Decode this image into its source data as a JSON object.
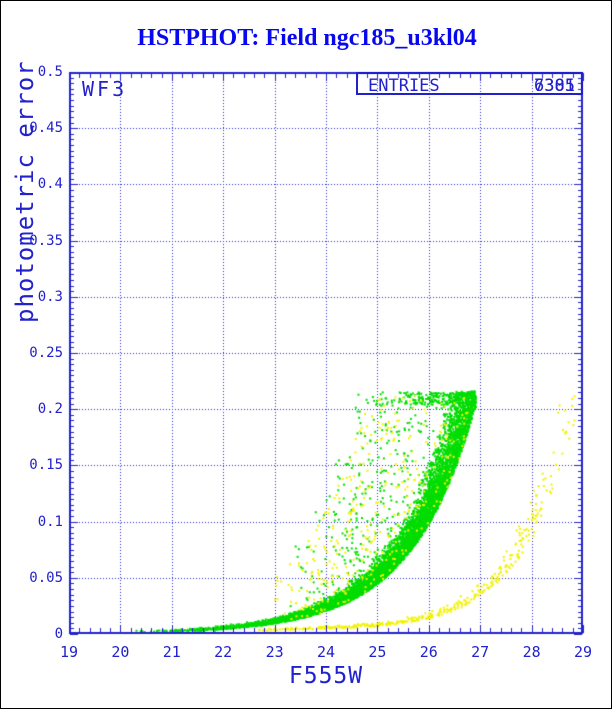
{
  "title": "HSTPHOT: Field ngc185_u3kl04",
  "colors": {
    "title": "#0707f0",
    "axis": "#2222cd",
    "grid": "#2a2ad2",
    "series_green": "#00dd00",
    "series_yellow": "#f2f200",
    "background": "#ffffff"
  },
  "plot": {
    "camera_label": "WF3",
    "entries_box": {
      "label": "ENTRIES",
      "values": [
        "7385",
        "6301"
      ]
    }
  },
  "chart_data": {
    "type": "scatter",
    "title": "HSTPHOT: Field ngc185_u3kl04",
    "xlabel": "F555W",
    "ylabel": "photometric error",
    "xlim": [
      19,
      29
    ],
    "ylim": [
      0,
      0.5
    ],
    "x_ticks": [
      19,
      20,
      21,
      22,
      23,
      24,
      25,
      26,
      27,
      28,
      29
    ],
    "x_tick_labels": [
      "19",
      "20",
      "21",
      "22",
      "23",
      "24",
      "25",
      "26",
      "27",
      "28",
      "29"
    ],
    "y_ticks": [
      0,
      0.05,
      0.1,
      0.15,
      0.2,
      0.25,
      0.3,
      0.35,
      0.4,
      0.45,
      0.5
    ],
    "y_tick_labels": [
      "0",
      "0.05",
      "0.1",
      "0.15",
      "0.2",
      "0.25",
      "0.3",
      "0.35",
      "0.4",
      "0.45",
      "0.5"
    ],
    "x_minor_step": 0.2,
    "y_minor_step": 0.005,
    "grid": "dotted lines at every major tick",
    "legend": "none",
    "series": [
      {
        "name": "green-points",
        "entries": 7385,
        "color": "#00dd00",
        "description": "dense error-vs-magnitude sequence with scattered outlier cloud above it; sharp faint-end cutoff",
        "trend_mag": [
          22,
          23,
          24,
          25,
          26,
          26.9
        ],
        "trend_err": [
          0.004,
          0.009,
          0.02,
          0.044,
          0.097,
          0.2
        ],
        "mag_range": [
          20.3,
          26.92
        ],
        "err_cutoff": 0.215,
        "n_band": 7000,
        "n_cloud": 950,
        "n_bright_sparse": 10
      },
      {
        "name": "yellow-points",
        "entries": 6301,
        "color": "#f2f200",
        "description": "tight shallow error sequence hugging the axis out to mag 29 plus sparse outliers mixed with the green cloud",
        "trend_mag": [
          23,
          24,
          25,
          26,
          27,
          28,
          28.85
        ],
        "trend_err": [
          0.003,
          0.0045,
          0.0065,
          0.013,
          0.033,
          0.084,
          0.19
        ],
        "mag_range": [
          22.6,
          29.0
        ],
        "err_cutoff": 0.215,
        "n_seq": 460,
        "n_cloud": 700
      }
    ]
  }
}
